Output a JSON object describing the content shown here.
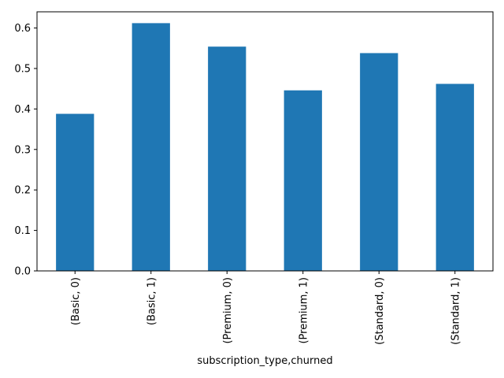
{
  "chart_data": {
    "type": "bar",
    "title": "",
    "xlabel": "subscription_type,churned",
    "ylabel": "",
    "categories": [
      "(Basic, 0)",
      "(Basic, 1)",
      "(Premium, 0)",
      "(Premium, 1)",
      "(Standard, 0)",
      "(Standard, 1)"
    ],
    "values": [
      0.388,
      0.612,
      0.554,
      0.446,
      0.538,
      0.462
    ],
    "ylim": [
      0,
      0.64
    ],
    "yticks": [
      0.0,
      0.1,
      0.2,
      0.3,
      0.4,
      0.5,
      0.6
    ],
    "ytick_labels": [
      "0.0",
      "0.1",
      "0.2",
      "0.3",
      "0.4",
      "0.5",
      "0.6"
    ],
    "bar_color": "#1f77b4",
    "grid": false,
    "legend": false
  }
}
